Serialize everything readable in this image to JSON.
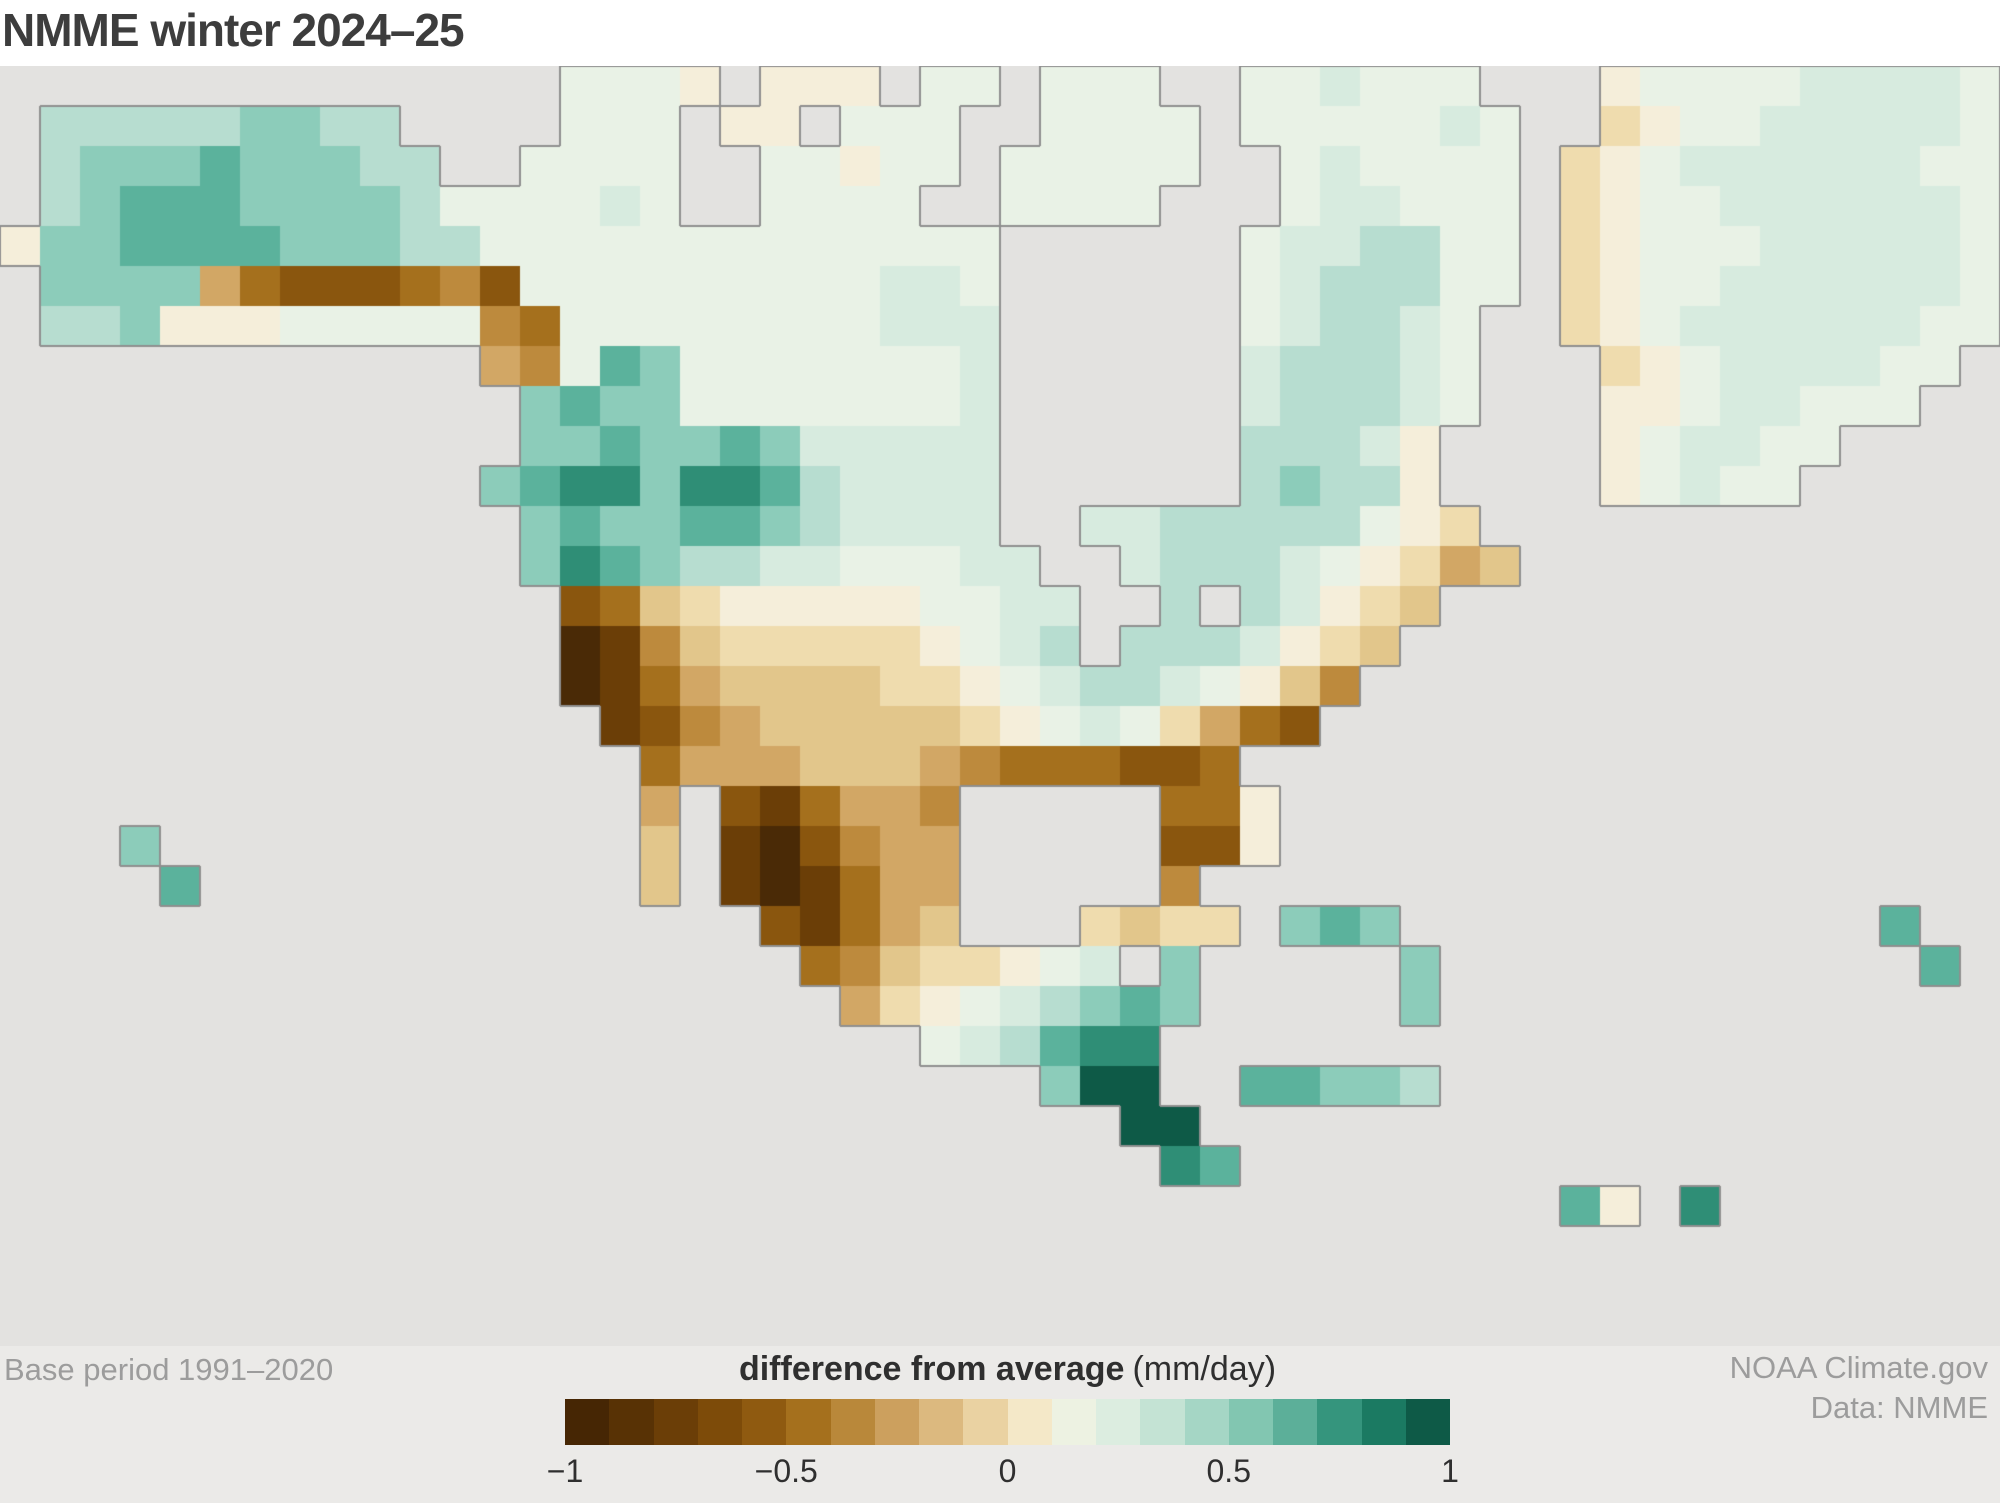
{
  "title": "NMME winter 2024–25",
  "map": {
    "base_period_label": "Base period 1991–2020",
    "attribution_line1": "NOAA Climate.gov",
    "attribution_line2": "Data: NMME",
    "ocean_color": "#e3e2e0",
    "coast_color": "#8f8f8f",
    "palette": {
      "0": "#4a2a06",
      "1": "#6b3e07",
      "2": "#8a560e",
      "3": "#a5701d",
      "4": "#bd8a3d",
      "5": "#d2a765",
      "6": "#e2c68b",
      "7": "#efdcae",
      "8": "#f5eeda",
      "9": "#e9f2e6",
      "A": "#d7ebdf",
      "B": "#b7ddd0",
      "C": "#8cccba",
      "D": "#5bb29c",
      "E": "#2f8e76",
      "F": "#0e5a47"
    },
    "grid": {
      "cell_size": 40,
      "rows": [
        "..............9998.888.99.999..99A999...89999AAAA9",
        ".BBBBBCCBB....999.88.999..9999.99999A9..7899AAAAA9",
        ".BCCCDCCCBB..9999..99899.99999..9A9999.789AAAAAA99",
        ".BCDDDCCCCB9999A9..9999..9999...9AA999.7899AAAAAA9",
        "8CCDDDDCCCBB9999999999999......9AABB99.78999AAAAA9",
        ".CCCC53222342999999999AA9......9ABBB99.7899AAAAAA9",
        ".BBC888999994399999999AAA......9ABBA9..789AAAAAA99",
        "............549DC9999999A......ABBBA9...789AAAA99.",
        ".............CDCC9999999A......ABBBA9...889AA999..",
        ".............CCDCCDCAAAAA......BBBA8....89AA99....",
        "............CDEECEEDBAAAA......BCBB8....89A99.....",
        ".............CDCCDDCBAAAA..AABBBBB987.............",
        ".............CEDCBBAA999AA..ABBBA98756............",
        "..............23678888899AA..B.BA876..............",
        "..............01467777789AB.BBBA876...............",
        "..............013566667789ABBA9864................",
        "...............124566666789A97532.................",
        "................355566654333223...................",
        "................5.213554.....338..................",
        "...C............6.102455.....228..................",
        "....D...........6.101355.....4....................",
        "...................21356...7677.CDC............D..",
        "....................3467789A.C.....C............D.",
        ".....................5789ABCDC.....C..............",
        ".......................9ABDEE.....................",
        "..........................CFF..DDCCB..............",
        "............................FF....................",
        ".............................ED...................",
        ".......................................D8.E.......",
        "..................................................",
        "..................................................",
        ".................................................."
      ]
    }
  },
  "colorbar": {
    "label_bold": "difference from average",
    "label_units": "(mm/day)",
    "ticks": [
      "−1",
      "−0.5",
      "0",
      "0.5",
      "1"
    ],
    "range_min": -1,
    "range_max": 1,
    "colors": [
      "#462604",
      "#583205",
      "#6b3e07",
      "#7d4b09",
      "#8f5a10",
      "#a5701d",
      "#b9883a",
      "#cca05e",
      "#dcb97f",
      "#ead2a2",
      "#f4e8c8",
      "#edf2e2",
      "#dcede0",
      "#c4e3d4",
      "#a5d6c5",
      "#82c6b1",
      "#5caf99",
      "#35957d",
      "#1b7a62",
      "#0e5a47"
    ]
  }
}
